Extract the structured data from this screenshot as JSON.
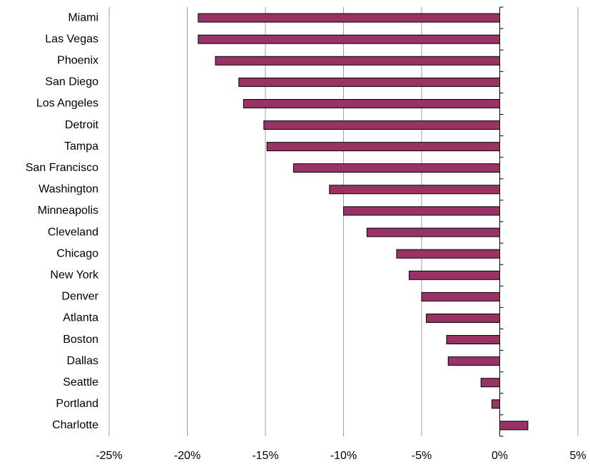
{
  "chart_data": {
    "type": "barh",
    "categories": [
      "Miami",
      "Las Vegas",
      "Phoenix",
      "San Diego",
      "Los Angeles",
      "Detroit",
      "Tampa",
      "San Francisco",
      "Washington",
      "Minneapolis",
      "Cleveland",
      "Chicago",
      "New York",
      "Denver",
      "Atlanta",
      "Boston",
      "Dallas",
      "Seattle",
      "Portland",
      "Charlotte"
    ],
    "values": [
      -19.3,
      -19.3,
      -18.2,
      -16.7,
      -16.4,
      -15.1,
      -14.9,
      -13.2,
      -10.9,
      -10.0,
      -8.5,
      -6.6,
      -5.8,
      -5.0,
      -4.7,
      -3.4,
      -3.3,
      -1.2,
      -0.5,
      1.8
    ],
    "color": "#993366",
    "xlim": [
      -25,
      5
    ],
    "xticks": [
      {
        "value": -25,
        "label": "-25%"
      },
      {
        "value": -20,
        "label": "-20%"
      },
      {
        "value": -15,
        "label": "-15%"
      },
      {
        "value": -10,
        "label": "-10%"
      },
      {
        "value": -5,
        "label": "-5%"
      },
      {
        "value": 0,
        "label": "0%"
      },
      {
        "value": 5,
        "label": "5%"
      }
    ],
    "grid": true
  }
}
